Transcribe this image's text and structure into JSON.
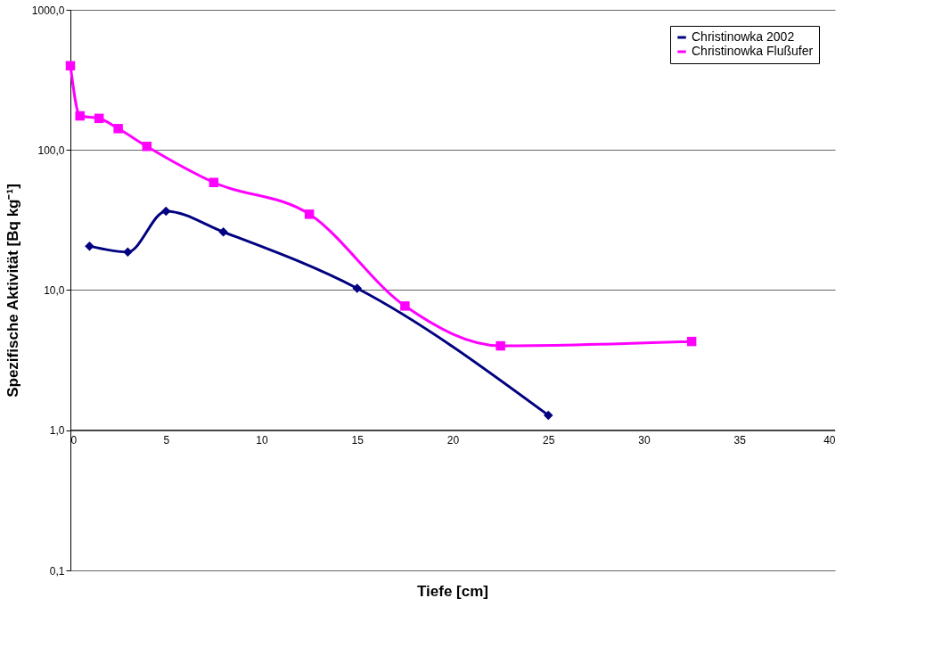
{
  "chart_data": {
    "type": "line",
    "xlabel": "Tiefe [cm]",
    "ylabel": "Spezifische Aktivität [Bq kg⁻¹]",
    "xlim": [
      0,
      40
    ],
    "xticks": [
      0,
      5,
      10,
      15,
      20,
      25,
      30,
      35,
      40
    ],
    "ylim": [
      0.1,
      1000
    ],
    "yticks": [
      {
        "value": 0.1,
        "label": "0,1"
      },
      {
        "value": 1,
        "label": "1,0"
      },
      {
        "value": 10,
        "label": "10,0"
      },
      {
        "value": 100,
        "label": "100,0"
      },
      {
        "value": 1000,
        "label": "1000,0"
      }
    ],
    "log": "y",
    "grid": "y",
    "legend": "top right",
    "ref_lines": [
      {
        "axis": "y",
        "value": 1,
        "color": "#000000"
      }
    ],
    "series": [
      {
        "name": "Christinowka 2002",
        "color": "#000080",
        "marker": "diamond",
        "x": [
          1,
          3,
          5,
          8,
          15,
          25
        ],
        "values": [
          20.6,
          18.7,
          36.6,
          26,
          10.3,
          1.28
        ]
      },
      {
        "name": "Christinowka Flußufer",
        "color": "#ff00ff",
        "marker": "square",
        "x": [
          0,
          0.5,
          1.5,
          2.5,
          4,
          7.5,
          12.5,
          17.5,
          22.5,
          32.5
        ],
        "values": [
          399,
          175,
          168,
          142,
          106,
          58.6,
          34.8,
          7.7,
          4.0,
          4.3
        ]
      }
    ]
  }
}
